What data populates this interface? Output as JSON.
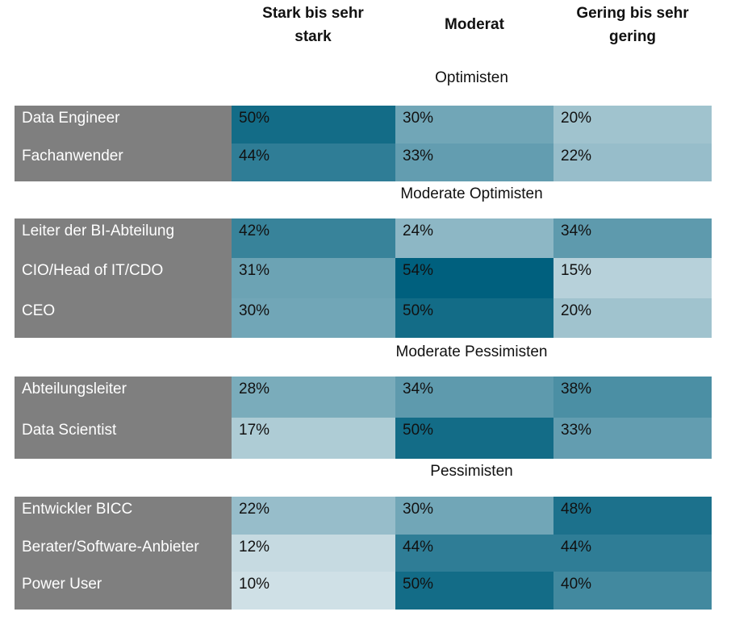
{
  "chart_data": {
    "type": "heatmap",
    "columns": [
      "Stark bis sehr stark",
      "Moderat",
      "Gering bis sehr gering"
    ],
    "groups": [
      {
        "name": "Optimisten",
        "rows": [
          {
            "label": "Data Engineer",
            "values": [
              50,
              30,
              20
            ],
            "display": [
              "50%",
              "30%",
              "20%"
            ]
          },
          {
            "label": "Fachanwender",
            "values": [
              44,
              33,
              22
            ],
            "display": [
              "44%",
              "33%",
              "22%"
            ]
          }
        ]
      },
      {
        "name": "Moderate Optimisten",
        "rows": [
          {
            "label": "Leiter der BI-Abteilung",
            "values": [
              42,
              24,
              34
            ],
            "display": [
              "42%",
              "24%",
              "34%"
            ]
          },
          {
            "label": "CIO/Head of IT/CDO",
            "values": [
              31,
              54,
              15
            ],
            "display": [
              "31%",
              "54%",
              "15%"
            ]
          },
          {
            "label": "CEO",
            "values": [
              30,
              50,
              20
            ],
            "display": [
              "30%",
              "50%",
              "20%"
            ]
          }
        ]
      },
      {
        "name": "Moderate Pessimisten",
        "rows": [
          {
            "label": "Abteilungsleiter",
            "values": [
              28,
              34,
              38
            ],
            "display": [
              "28%",
              "34%",
              "38%"
            ]
          },
          {
            "label": "Data Scientist",
            "values": [
              17,
              50,
              33
            ],
            "display": [
              "17%",
              "50%",
              "33%"
            ]
          }
        ]
      },
      {
        "name": "Pessimisten",
        "rows": [
          {
            "label": "Entwickler BICC",
            "values": [
              22,
              30,
              48
            ],
            "display": [
              "22%",
              "30%",
              "48%"
            ]
          },
          {
            "label": "Berater/Software-Anbieter",
            "values": [
              12,
              44,
              44
            ],
            "display": [
              "12%",
              "44%",
              "44%"
            ]
          },
          {
            "label": "Power User",
            "values": [
              10,
              50,
              40
            ],
            "display": [
              "10%",
              "50%",
              "40%"
            ]
          }
        ]
      }
    ],
    "value_unit": "%",
    "colors": {
      "row_label_bg": "#7f7f7f",
      "row_label_text": "#ffffff",
      "scale_low": "#cfe0e6",
      "scale_high": "#00607e"
    }
  }
}
